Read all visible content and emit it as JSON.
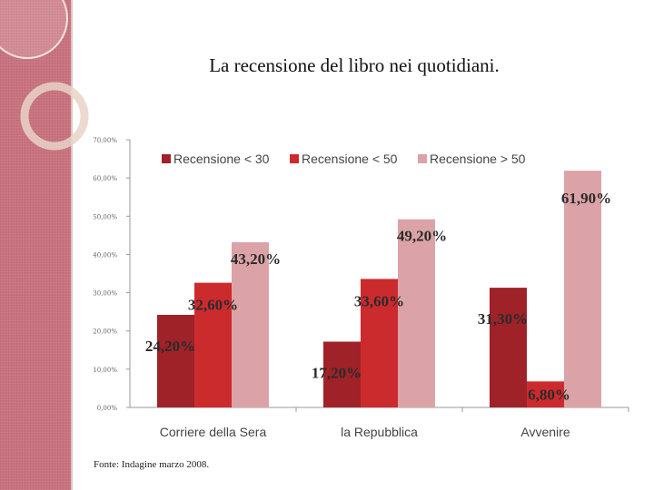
{
  "slide": {
    "title": "La recensione del libro nei quotidiani.",
    "source": "Fonte: Indagine marzo 2008."
  },
  "chart_data": {
    "type": "bar",
    "title": "La recensione del libro nei quotidiani.",
    "categories": [
      "Corriere della Sera",
      "la Repubblica",
      "Avvenire"
    ],
    "series": [
      {
        "name": "Recensione < 30",
        "values": [
          24.2,
          17.2,
          31.3
        ],
        "labels": [
          "24,20%",
          "17,20%",
          "31,30%"
        ],
        "color": "#9e2228"
      },
      {
        "name": "Recensione < 50",
        "values": [
          32.6,
          33.6,
          6.8
        ],
        "labels": [
          "32,60%",
          "33,60%",
          "6,80%"
        ],
        "color": "#cc2b2e"
      },
      {
        "name": "Recensione > 50",
        "values": [
          43.2,
          49.2,
          61.9
        ],
        "labels": [
          "43,20%",
          "49,20%",
          "61,90%"
        ],
        "color": "#dba3a7"
      }
    ],
    "ylim": [
      0,
      70
    ],
    "yticks": [
      "0,00%",
      "10,00%",
      "20,00%",
      "30,00%",
      "40,00%",
      "50,00%",
      "60,00%",
      "70,00%"
    ],
    "xlabel": "",
    "ylabel": "",
    "legend": "top"
  }
}
